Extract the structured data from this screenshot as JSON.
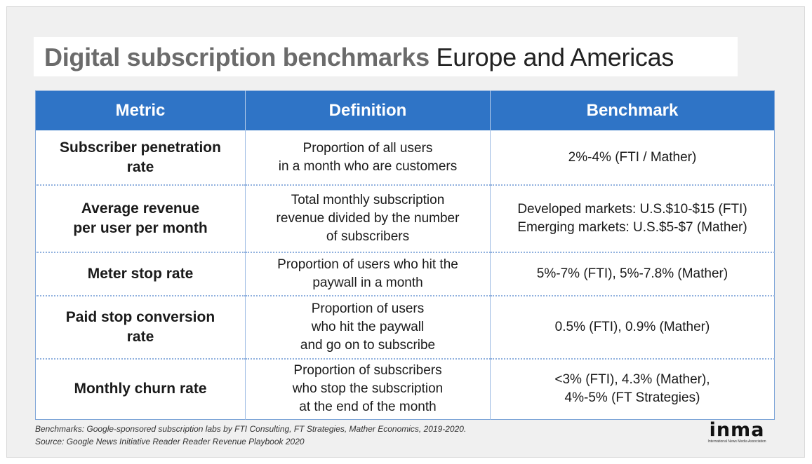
{
  "title": {
    "bold": "Digital subscription benchmarks",
    "light": "Europe and Americas"
  },
  "table": {
    "headers": [
      "Metric",
      "Definition",
      "Benchmark"
    ],
    "rows": [
      {
        "metric": [
          "Subscriber penetration",
          "rate"
        ],
        "definition": [
          "Proportion of all users",
          "in a month who are customers"
        ],
        "benchmark": [
          "2%-4% (FTI / Mather)"
        ]
      },
      {
        "metric": [
          "Average revenue",
          "per user per month"
        ],
        "definition": [
          "Total monthly subscription",
          "revenue divided by the number",
          "of subscribers"
        ],
        "benchmark": [
          "Developed markets: U.S.$10-$15 (FTI)",
          "Emerging markets: U.S.$5-$7 (Mather)"
        ]
      },
      {
        "metric": [
          "Meter stop rate"
        ],
        "definition": [
          "Proportion of users who hit the",
          "paywall in a month"
        ],
        "benchmark": [
          "5%-7% (FTI), 5%-7.8% (Mather)"
        ]
      },
      {
        "metric": [
          "Paid stop conversion",
          "rate"
        ],
        "definition": [
          "Proportion of users",
          "who hit the paywall",
          "and go on to subscribe"
        ],
        "benchmark": [
          "0.5% (FTI), 0.9% (Mather)"
        ]
      },
      {
        "metric": [
          "Monthly churn rate"
        ],
        "definition": [
          "Proportion of subscribers",
          "who stop the subscription",
          "at the end of the month"
        ],
        "benchmark": [
          "<3% (FTI), 4.3% (Mather),",
          "4%-5% (FT Strategies)"
        ]
      }
    ]
  },
  "footnotes": {
    "benchmarks": "Benchmarks: Google-sponsored subscription labs by FTI Consulting, FT Strategies, Mather Economics, 2019-2020.",
    "source": "Source: Google News Initiative Reader Reader Revenue Playbook 2020"
  },
  "logo": {
    "word": "inma",
    "tagline": "International News Media Association"
  },
  "colors": {
    "header_bg": "#2f74c6",
    "frame_bg": "#f0f0f0",
    "title_bold": "#6b6b6b"
  }
}
